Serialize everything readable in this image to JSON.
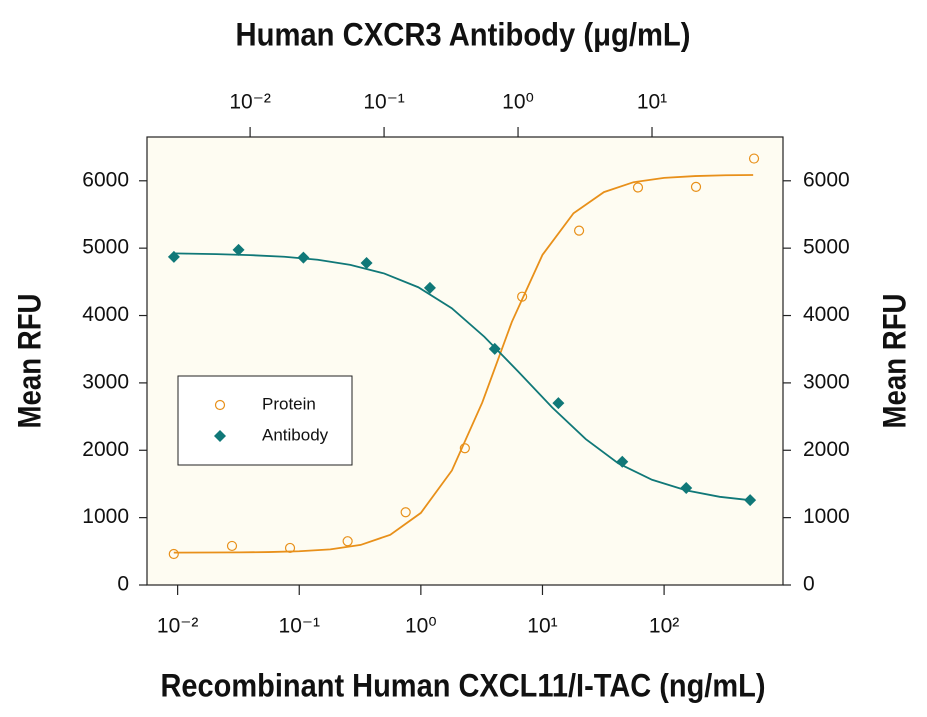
{
  "chart_data": {
    "type": "scatter",
    "x_label": "Recombinant Human CXCL11/I-TAC (ng/mL)",
    "x2_label": "Human CXCR3 Antibody (μg/mL)",
    "y_label": "Mean RFU",
    "y2_label": "Mean RFU",
    "xscale": "log",
    "x2scale": "log",
    "xlim": [
      0.0056,
      950
    ],
    "xticks": [
      {
        "value": 0.01,
        "label": "10⁻²"
      },
      {
        "value": 0.1,
        "label": "10⁻¹"
      },
      {
        "value": 1,
        "label": "10⁰"
      },
      {
        "value": 10,
        "label": "10¹"
      },
      {
        "value": 100,
        "label": "10²"
      }
    ],
    "x2lim": [
      0.0017,
      95
    ],
    "x2ticks": [
      {
        "value": 0.01,
        "label": "10⁻²"
      },
      {
        "value": 0.1,
        "label": "10⁻¹"
      },
      {
        "value": 1,
        "label": "10⁰"
      },
      {
        "value": 10,
        "label": "10¹"
      }
    ],
    "ylim": [
      0,
      6650
    ],
    "yticks": [
      0,
      1000,
      2000,
      3000,
      4000,
      5000,
      6000
    ],
    "y2lim": [
      0,
      6650
    ],
    "y2ticks": [
      0,
      1000,
      2000,
      3000,
      4000,
      5000,
      6000
    ],
    "legend": "left",
    "series": [
      {
        "name": "Protein",
        "color": "#e8901a",
        "marker": "circle",
        "x": [
          0.0093,
          0.028,
          0.084,
          0.25,
          0.75,
          2.3,
          6.8,
          20,
          61,
          183,
          549
        ],
        "values": [
          460,
          580,
          550,
          650,
          1080,
          2030,
          4280,
          5260,
          5900,
          5910,
          6330
        ],
        "fit": {
          "x": [
            0.0093,
            0.018,
            0.032,
            0.056,
            0.1,
            0.18,
            0.32,
            0.56,
            1,
            1.8,
            3.2,
            5.6,
            10,
            18,
            32,
            56,
            100,
            180,
            320,
            540
          ],
          "values": [
            481,
            482,
            484,
            489,
            501,
            529,
            595,
            745,
            1070,
            1700,
            2710,
            3905,
            4900,
            5518,
            5832,
            5979,
            6043,
            6070,
            6082,
            6086
          ]
        }
      },
      {
        "name": "Antibody",
        "color": "#107878",
        "marker": "diamond",
        "axis": "x2",
        "x": [
          0.0027,
          0.0082,
          0.025,
          0.074,
          0.22,
          0.67,
          2.0,
          6.0,
          18,
          54
        ],
        "values": [
          4870,
          4975,
          4860,
          4780,
          4410,
          3505,
          2700,
          1830,
          1440,
          1260
        ],
        "fit": {
          "x": [
            0.0027,
            0.0056,
            0.01,
            0.018,
            0.032,
            0.056,
            0.1,
            0.18,
            0.32,
            0.56,
            1,
            1.8,
            3.2,
            5.6,
            10,
            18,
            32,
            56
          ],
          "values": [
            4922,
            4911,
            4897,
            4872,
            4828,
            4752,
            4625,
            4420,
            4109,
            3685,
            3171,
            2635,
            2166,
            1806,
            1562,
            1404,
            1309,
            1255
          ]
        }
      }
    ]
  }
}
